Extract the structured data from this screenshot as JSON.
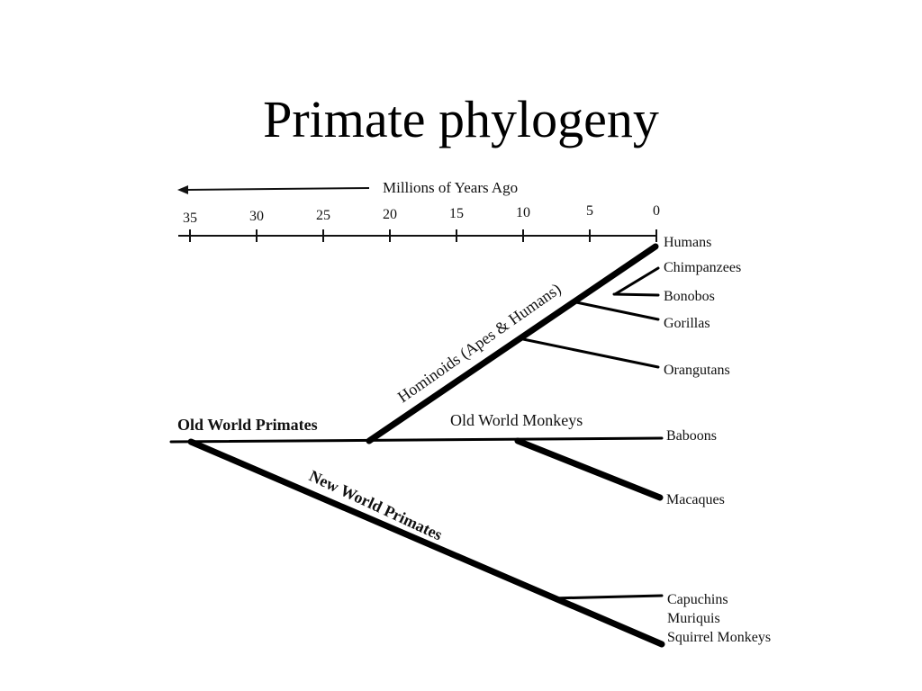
{
  "title": "Primate phylogeny",
  "axis": {
    "title": "Millions of Years Ago",
    "ticks": [
      "35",
      "30",
      "25",
      "20",
      "15",
      "10",
      "5",
      "0"
    ]
  },
  "groups": {
    "old_world_primates": "Old World Primates",
    "hominoids": "Hominoids (Apes & Humans)",
    "old_world_monkeys": "Old World Monkeys",
    "new_world_primates": "New World Primates"
  },
  "leaves": {
    "humans": "Humans",
    "chimpanzees": "Chimpanzees",
    "bonobos": "Bonobos",
    "gorillas": "Gorillas",
    "orangutans": "Orangutans",
    "baboons": "Baboons",
    "macaques": "Macaques",
    "capuchins": "Capuchins",
    "muriquis": "Muriquis",
    "squirrel_monkeys": "Squirrel Monkeys"
  }
}
